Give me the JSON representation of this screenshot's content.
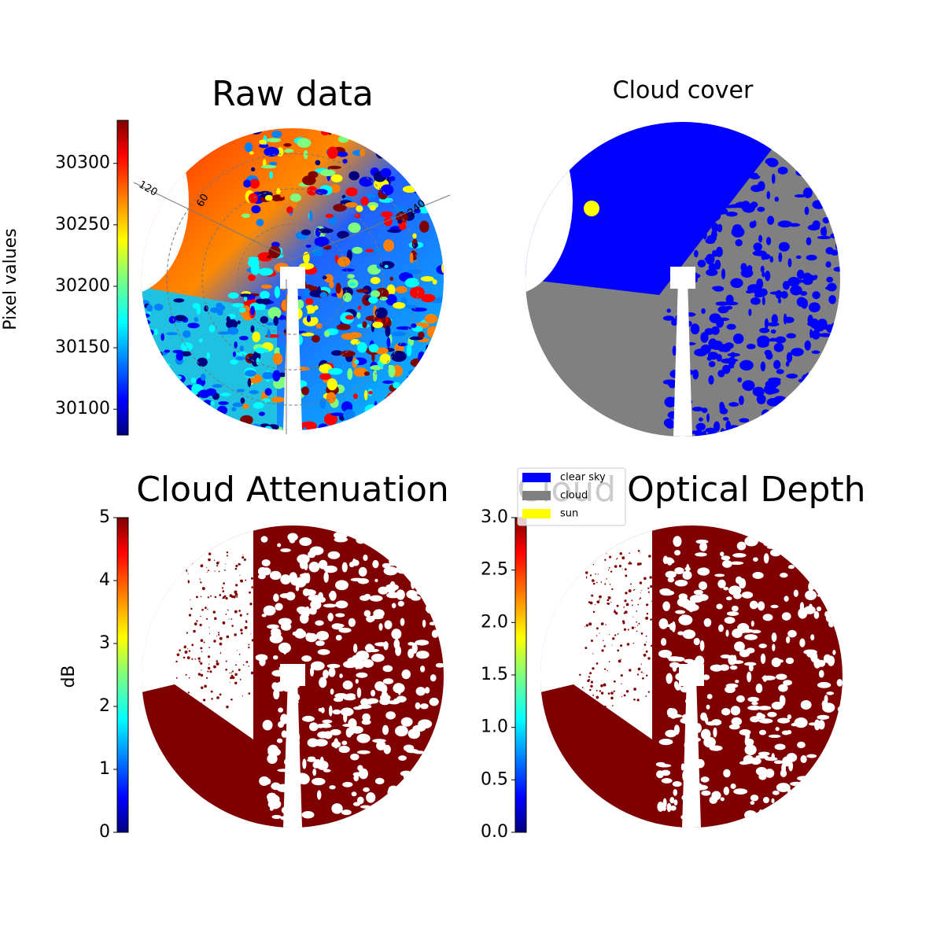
{
  "chart_data": [
    {
      "type": "image",
      "title": "Raw data",
      "colorbar": {
        "label": "Pixel values",
        "colormap": "jet",
        "clim": [
          30079,
          30335
        ],
        "ticks": [
          30100,
          30150,
          30200,
          30250,
          30300
        ]
      },
      "polar_labels": [
        "120",
        "60",
        "240"
      ]
    },
    {
      "type": "image",
      "title": "Cloud cover",
      "legend": "lower left",
      "series": [
        {
          "name": "clear sky",
          "color": "#0000ff"
        },
        {
          "name": "cloud",
          "color": "#808080"
        },
        {
          "name": "sun",
          "color": "#ffff00"
        }
      ]
    },
    {
      "type": "image",
      "title": "Cloud Attenuation",
      "colorbar": {
        "label": "dB",
        "colormap": "jet",
        "clim": [
          0,
          5
        ],
        "ticks": [
          0,
          1,
          2,
          3,
          4,
          5
        ]
      }
    },
    {
      "type": "image",
      "title": "Cloud Optical Depth",
      "colorbar": {
        "colormap": "jet",
        "clim": [
          0,
          3
        ],
        "ticks": [
          {
            "value": 0,
            "label": "0.0"
          },
          {
            "value": 0.5,
            "label": "0.5"
          },
          {
            "value": 1,
            "label": "1.0"
          },
          {
            "value": 1.5,
            "label": "1.5"
          },
          {
            "value": 2,
            "label": "2.0"
          },
          {
            "value": 2.5,
            "label": "2.5"
          },
          {
            "value": 3,
            "label": "3.0"
          }
        ]
      }
    }
  ]
}
